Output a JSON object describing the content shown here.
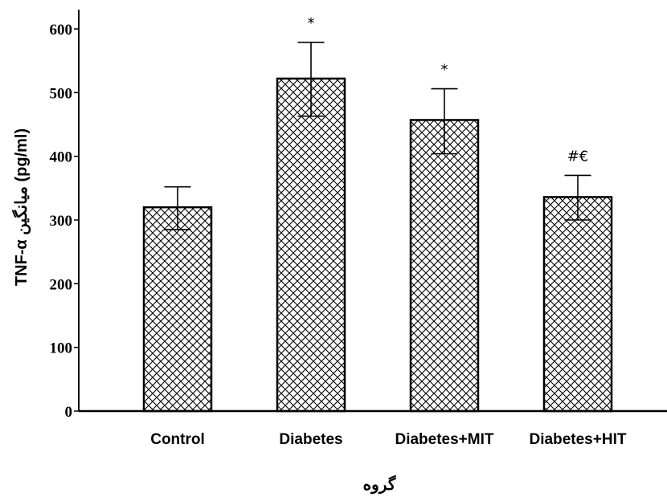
{
  "chart_data": {
    "type": "bar",
    "categories": [
      "Control",
      "Diabetes",
      "Diabetes+MIT",
      "Diabetes+HIT"
    ],
    "values": [
      320,
      522,
      457,
      336
    ],
    "error_upper": [
      352,
      579,
      506,
      370
    ],
    "error_lower": [
      285,
      463,
      404,
      300
    ],
    "annotations": [
      "",
      "*",
      "*",
      "#€"
    ],
    "ylabel": "TNF-α میانگین (pg/ml)",
    "xlabel": "گروه",
    "ylim": [
      0,
      620
    ],
    "yticks": [
      0,
      100,
      200,
      300,
      400,
      500,
      600
    ],
    "grid": false,
    "pattern": "crosshatch",
    "colors": {
      "bar_fill": "#ffffff",
      "hatch": "#000000",
      "axis": "#000000"
    }
  }
}
